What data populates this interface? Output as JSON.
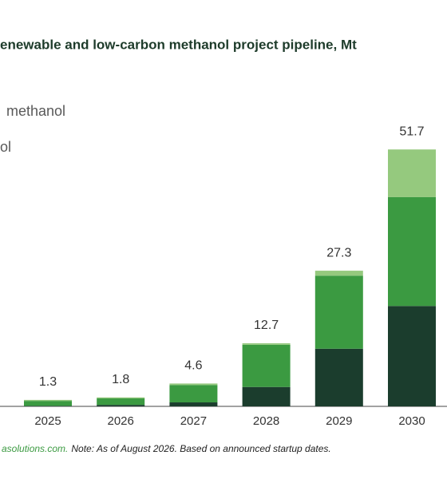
{
  "chart_data": {
    "type": "stacked-bar",
    "title": "enewable and low-carbon methanol project pipeline, Mt",
    "categories": [
      "2025",
      "2026",
      "2027",
      "2028",
      "2029",
      "2030"
    ],
    "series": [
      {
        "color": "#1b3d2d",
        "values": [
          0.1,
          0.3,
          0.8,
          3.9,
          11.6,
          20.2
        ]
      },
      {
        "name": "ol",
        "color": "#3b9a41",
        "values": [
          1.0,
          1.3,
          3.5,
          8.5,
          14.7,
          21.9
        ]
      },
      {
        "name": "methanol",
        "color": "#95c97e",
        "values": [
          0.2,
          0.2,
          0.3,
          0.3,
          1.0,
          9.6
        ]
      }
    ],
    "totals": [
      1.3,
      1.8,
      4.6,
      12.7,
      27.3,
      51.7
    ],
    "ylim": [
      0,
      58
    ],
    "source": "asolutions.com.",
    "note": "Note: As of August 2026. Based on announced startup dates."
  }
}
